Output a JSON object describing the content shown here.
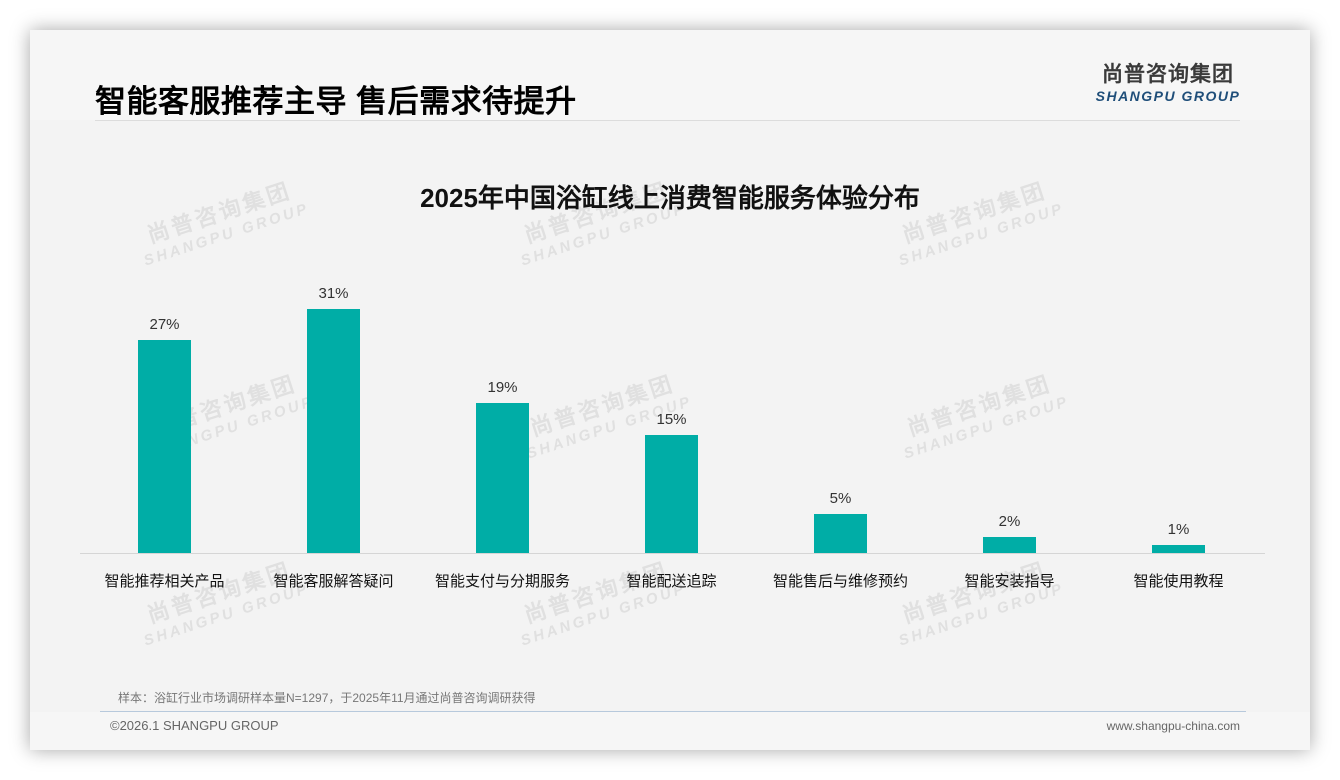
{
  "slide": {
    "title": "智能客服推荐主导 售后需求待提升",
    "logo": {
      "cn": "尚普咨询集团",
      "en": "SHANGPU GROUP"
    },
    "watermark": {
      "cn": "尚普咨询集团",
      "en": "SHANGPU GROUP"
    },
    "note": "样本：浴缸行业市场调研样本量N=1297，于2025年11月通过尚普咨询调研获得",
    "footer": {
      "copyright": "©2026.1 SHANGPU GROUP",
      "website": "www.shangpu-china.com"
    }
  },
  "chart": {
    "title": "2025年中国浴缸线上消费智能服务体验分布",
    "bar_color": "#00ada6",
    "bars": [
      {
        "label": "智能推荐相关产品",
        "value": 27,
        "display": "27%"
      },
      {
        "label": "智能客服解答疑问",
        "value": 31,
        "display": "31%"
      },
      {
        "label": "智能支付与分期服务",
        "value": 19,
        "display": "19%"
      },
      {
        "label": "智能配送追踪",
        "value": 15,
        "display": "15%"
      },
      {
        "label": "智能售后与维修预约",
        "value": 5,
        "display": "5%"
      },
      {
        "label": "智能安装指导",
        "value": 2,
        "display": "2%"
      },
      {
        "label": "智能使用教程",
        "value": 1,
        "display": "1%"
      }
    ]
  },
  "chart_data": {
    "type": "bar",
    "title": "2025年中国浴缸线上消费智能服务体验分布",
    "categories": [
      "智能推荐相关产品",
      "智能客服解答疑问",
      "智能支付与分期服务",
      "智能配送追踪",
      "智能售后与维修预约",
      "智能安装指导",
      "智能使用教程"
    ],
    "values": [
      27,
      31,
      19,
      15,
      5,
      2,
      1
    ],
    "unit": "%",
    "xlabel": "",
    "ylabel": "",
    "ylim": [
      0,
      35
    ],
    "grid": false,
    "legend": null,
    "data_labels": [
      "27%",
      "31%",
      "19%",
      "15%",
      "5%",
      "2%",
      "1%"
    ]
  }
}
